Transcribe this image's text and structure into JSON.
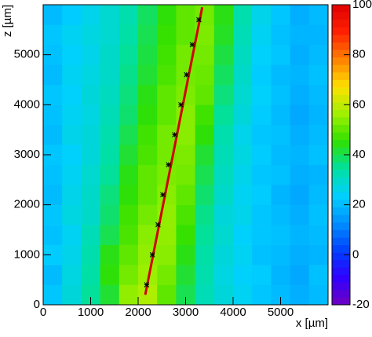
{
  "chart_data": {
    "type": "heatmap",
    "x_label": "x [µm]",
    "y_label": "z [µm]",
    "xlim": [
      0,
      6000
    ],
    "ylim": [
      0,
      6000
    ],
    "xticks": [
      0,
      1000,
      2000,
      3000,
      4000,
      5000
    ],
    "yticks": [
      0,
      1000,
      2000,
      3000,
      4000,
      5000
    ],
    "xbins": [
      0,
      400,
      800,
      1200,
      1600,
      2000,
      2400,
      2800,
      3200,
      3600,
      4000,
      4400,
      4800,
      5200,
      5600,
      6000
    ],
    "ybins": [
      0,
      400,
      800,
      1200,
      1600,
      2000,
      2400,
      2800,
      3200,
      3600,
      4000,
      4400,
      4800,
      5200,
      5600,
      6000
    ],
    "z": [
      [
        22,
        28,
        35,
        42,
        55,
        58,
        50,
        40,
        32,
        28,
        25,
        22,
        20,
        18,
        20
      ],
      [
        20,
        27,
        34,
        45,
        52,
        56,
        52,
        42,
        33,
        27,
        24,
        23,
        19,
        17,
        21
      ],
      [
        23,
        26,
        33,
        44,
        50,
        55,
        54,
        44,
        34,
        28,
        25,
        21,
        20,
        18,
        19
      ],
      [
        21,
        25,
        32,
        40,
        48,
        54,
        55,
        46,
        35,
        29,
        24,
        22,
        21,
        19,
        20
      ],
      [
        22,
        27,
        30,
        38,
        47,
        52,
        55,
        48,
        36,
        28,
        26,
        22,
        20,
        18,
        21
      ],
      [
        20,
        26,
        30,
        37,
        45,
        50,
        54,
        50,
        38,
        30,
        25,
        23,
        19,
        17,
        20
      ],
      [
        21,
        25,
        29,
        35,
        44,
        50,
        53,
        52,
        40,
        31,
        26,
        22,
        21,
        18,
        19
      ],
      [
        22,
        24,
        28,
        34,
        42,
        48,
        52,
        53,
        42,
        32,
        27,
        23,
        20,
        19,
        21
      ],
      [
        20,
        26,
        28,
        33,
        40,
        47,
        52,
        54,
        45,
        33,
        26,
        22,
        21,
        18,
        20
      ],
      [
        21,
        25,
        27,
        32,
        38,
        45,
        50,
        54,
        47,
        35,
        28,
        23,
        20,
        17,
        19
      ],
      [
        22,
        24,
        28,
        31,
        37,
        44,
        50,
        53,
        50,
        37,
        29,
        24,
        21,
        18,
        20
      ],
      [
        20,
        25,
        27,
        30,
        36,
        42,
        48,
        52,
        51,
        39,
        30,
        23,
        20,
        19,
        21
      ],
      [
        21,
        24,
        26,
        30,
        35,
        41,
        47,
        52,
        52,
        41,
        31,
        24,
        22,
        18,
        20
      ],
      [
        22,
        25,
        27,
        29,
        34,
        40,
        46,
        50,
        53,
        43,
        32,
        25,
        21,
        19,
        19
      ],
      [
        20,
        23,
        26,
        29,
        33,
        39,
        45,
        50,
        52,
        44,
        33,
        26,
        22,
        18,
        20
      ]
    ],
    "zlim": [
      -20,
      100
    ],
    "zticks": [
      -20,
      0,
      20,
      40,
      60,
      80,
      100
    ],
    "colormap": [
      "#7000c0",
      "#3000ff",
      "#0040ff",
      "#0090ff",
      "#00d0ff",
      "#00e0a0",
      "#30e000",
      "#a0f000",
      "#ffe000",
      "#ff8000",
      "#ff2000",
      "#e00000"
    ],
    "track": {
      "x": [
        2150,
        3350
      ],
      "y": [
        200,
        5950
      ],
      "color": "#d00000"
    },
    "hits": {
      "x": [
        2180,
        2300,
        2420,
        2520,
        2640,
        2770,
        2900,
        3020,
        3140,
        3280
      ],
      "y": [
        400,
        1000,
        1600,
        2200,
        2800,
        3400,
        4000,
        4600,
        5200,
        5700
      ],
      "color": "#000000"
    }
  }
}
